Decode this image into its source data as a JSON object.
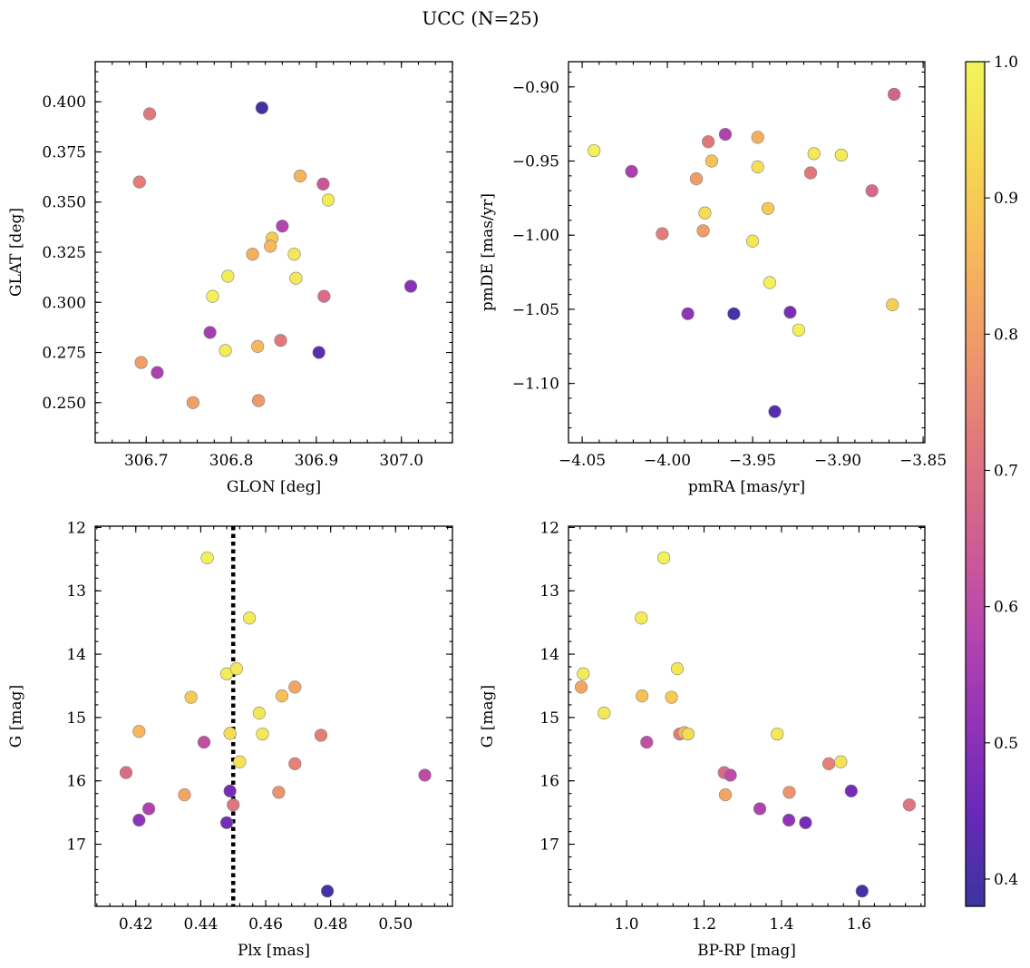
{
  "figure": {
    "title": "UCC (N=25)"
  },
  "colorbar": {
    "range": [
      0.38,
      1.0
    ],
    "ticks": [
      0.4,
      0.5,
      0.6,
      0.7,
      0.8,
      0.9,
      1.0
    ],
    "tick_labels": [
      "0.4",
      "0.5",
      "0.6",
      "0.7",
      "0.8",
      "0.9",
      "1.0"
    ],
    "colormap": "plasma",
    "stops": [
      "#3a35a0",
      "#6a28b8",
      "#9434b8",
      "#b947ad",
      "#d2608f",
      "#e27a7a",
      "#f09a6a",
      "#f7b95a",
      "#f6d951",
      "#f2f45a"
    ]
  },
  "chart_data": [
    {
      "type": "scatter",
      "xlabel": "GLON [deg]",
      "ylabel": "GLAT [deg]",
      "xlim": [
        306.64,
        307.06
      ],
      "ylim": [
        0.23,
        0.42
      ],
      "xticks": [
        306.7,
        306.8,
        306.9,
        307.0
      ],
      "xtick_labels": [
        "306.7",
        "306.8",
        "306.9",
        "307.0"
      ],
      "yticks": [
        0.25,
        0.275,
        0.3,
        0.325,
        0.35,
        0.375,
        0.4
      ],
      "ytick_labels": [
        "0.250",
        "0.275",
        "0.300",
        "0.325",
        "0.350",
        "0.375",
        "0.400"
      ],
      "y_inverted": false,
      "points": [
        {
          "x": 306.836,
          "y": 0.397,
          "c": 0.39
        },
        {
          "x": 306.704,
          "y": 0.394,
          "c": 0.72
        },
        {
          "x": 306.692,
          "y": 0.36,
          "c": 0.73
        },
        {
          "x": 306.881,
          "y": 0.363,
          "c": 0.85
        },
        {
          "x": 306.908,
          "y": 0.359,
          "c": 0.63
        },
        {
          "x": 306.914,
          "y": 0.351,
          "c": 0.98
        },
        {
          "x": 306.86,
          "y": 0.338,
          "c": 0.58
        },
        {
          "x": 306.848,
          "y": 0.332,
          "c": 0.9
        },
        {
          "x": 306.846,
          "y": 0.328,
          "c": 0.86
        },
        {
          "x": 306.825,
          "y": 0.324,
          "c": 0.84
        },
        {
          "x": 306.874,
          "y": 0.324,
          "c": 0.97
        },
        {
          "x": 306.796,
          "y": 0.313,
          "c": 0.98
        },
        {
          "x": 306.876,
          "y": 0.312,
          "c": 0.97
        },
        {
          "x": 306.778,
          "y": 0.303,
          "c": 0.99
        },
        {
          "x": 306.909,
          "y": 0.303,
          "c": 0.69
        },
        {
          "x": 307.011,
          "y": 0.308,
          "c": 0.5
        },
        {
          "x": 306.775,
          "y": 0.285,
          "c": 0.55
        },
        {
          "x": 306.858,
          "y": 0.281,
          "c": 0.72
        },
        {
          "x": 306.793,
          "y": 0.276,
          "c": 0.98
        },
        {
          "x": 306.831,
          "y": 0.278,
          "c": 0.86
        },
        {
          "x": 306.903,
          "y": 0.275,
          "c": 0.43
        },
        {
          "x": 306.694,
          "y": 0.27,
          "c": 0.8
        },
        {
          "x": 306.713,
          "y": 0.265,
          "c": 0.56
        },
        {
          "x": 306.755,
          "y": 0.25,
          "c": 0.8
        },
        {
          "x": 306.832,
          "y": 0.251,
          "c": 0.79
        }
      ]
    },
    {
      "type": "scatter",
      "xlabel": "pmRA [mas/yr]",
      "ylabel": "pmDE [mas/yr]",
      "xlim": [
        -4.058,
        -3.849
      ],
      "ylim": [
        -1.14,
        -0.883
      ],
      "xticks": [
        -4.05,
        -4.0,
        -3.95,
        -3.9,
        -3.85
      ],
      "xtick_labels": [
        "−4.05",
        "−4.00",
        "−3.95",
        "−3.90",
        "−3.85"
      ],
      "yticks": [
        -1.1,
        -1.05,
        -1.0,
        -0.95,
        -0.9
      ],
      "ytick_labels": [
        "−1.10",
        "−1.05",
        "−1.00",
        "−0.95",
        "−0.90"
      ],
      "y_inverted": false,
      "points": [
        {
          "x": -3.867,
          "y": -0.905,
          "c": 0.66
        },
        {
          "x": -4.043,
          "y": -0.943,
          "c": 0.99
        },
        {
          "x": -4.021,
          "y": -0.957,
          "c": 0.56
        },
        {
          "x": -3.966,
          "y": -0.932,
          "c": 0.57
        },
        {
          "x": -3.976,
          "y": -0.937,
          "c": 0.72
        },
        {
          "x": -3.947,
          "y": -0.934,
          "c": 0.84
        },
        {
          "x": -3.974,
          "y": -0.95,
          "c": 0.88
        },
        {
          "x": -3.983,
          "y": -0.962,
          "c": 0.8
        },
        {
          "x": -3.947,
          "y": -0.954,
          "c": 0.95
        },
        {
          "x": -3.914,
          "y": -0.945,
          "c": 0.97
        },
        {
          "x": -3.898,
          "y": -0.946,
          "c": 0.98
        },
        {
          "x": -3.916,
          "y": -0.958,
          "c": 0.72
        },
        {
          "x": -3.88,
          "y": -0.97,
          "c": 0.68
        },
        {
          "x": -3.978,
          "y": -0.985,
          "c": 0.94
        },
        {
          "x": -3.941,
          "y": -0.982,
          "c": 0.9
        },
        {
          "x": -4.003,
          "y": -0.999,
          "c": 0.73
        },
        {
          "x": -3.979,
          "y": -0.997,
          "c": 0.8
        },
        {
          "x": -3.95,
          "y": -1.004,
          "c": 0.97
        },
        {
          "x": -3.94,
          "y": -1.032,
          "c": 0.99
        },
        {
          "x": -3.868,
          "y": -1.047,
          "c": 0.91
        },
        {
          "x": -3.988,
          "y": -1.053,
          "c": 0.51
        },
        {
          "x": -3.961,
          "y": -1.053,
          "c": 0.4
        },
        {
          "x": -3.928,
          "y": -1.052,
          "c": 0.48
        },
        {
          "x": -3.923,
          "y": -1.064,
          "c": 0.99
        },
        {
          "x": -3.937,
          "y": -1.119,
          "c": 0.42
        }
      ]
    },
    {
      "type": "scatter",
      "xlabel": "Plx [mas]",
      "ylabel": "G [mag]",
      "xlim": [
        0.4075,
        0.5175
      ],
      "ylim": [
        17.98,
        11.98
      ],
      "xticks": [
        0.42,
        0.44,
        0.46,
        0.48,
        0.5
      ],
      "xtick_labels": [
        "0.42",
        "0.44",
        "0.46",
        "0.48",
        "0.50"
      ],
      "yticks": [
        12,
        13,
        14,
        15,
        16,
        17
      ],
      "ytick_labels": [
        "12",
        "13",
        "14",
        "15",
        "16",
        "17"
      ],
      "y_inverted": true,
      "reference_line": {
        "axis": "x",
        "value": 0.45,
        "style": "dotted"
      },
      "points": [
        {
          "x": 0.442,
          "y": 12.48,
          "c": 0.99
        },
        {
          "x": 0.455,
          "y": 13.43,
          "c": 0.98
        },
        {
          "x": 0.448,
          "y": 14.31,
          "c": 0.98
        },
        {
          "x": 0.451,
          "y": 14.23,
          "c": 0.97
        },
        {
          "x": 0.437,
          "y": 14.68,
          "c": 0.9
        },
        {
          "x": 0.465,
          "y": 14.66,
          "c": 0.88
        },
        {
          "x": 0.469,
          "y": 14.52,
          "c": 0.82
        },
        {
          "x": 0.458,
          "y": 14.93,
          "c": 0.97
        },
        {
          "x": 0.459,
          "y": 15.26,
          "c": 0.97
        },
        {
          "x": 0.449,
          "y": 15.25,
          "c": 0.94
        },
        {
          "x": 0.421,
          "y": 15.22,
          "c": 0.86
        },
        {
          "x": 0.441,
          "y": 15.39,
          "c": 0.61
        },
        {
          "x": 0.477,
          "y": 15.28,
          "c": 0.73
        },
        {
          "x": 0.452,
          "y": 15.7,
          "c": 0.96
        },
        {
          "x": 0.469,
          "y": 15.73,
          "c": 0.74
        },
        {
          "x": 0.417,
          "y": 15.87,
          "c": 0.69
        },
        {
          "x": 0.509,
          "y": 15.91,
          "c": 0.6
        },
        {
          "x": 0.449,
          "y": 16.16,
          "c": 0.47
        },
        {
          "x": 0.435,
          "y": 16.22,
          "c": 0.82
        },
        {
          "x": 0.464,
          "y": 16.18,
          "c": 0.78
        },
        {
          "x": 0.45,
          "y": 16.38,
          "c": 0.71
        },
        {
          "x": 0.424,
          "y": 16.44,
          "c": 0.57
        },
        {
          "x": 0.421,
          "y": 16.62,
          "c": 0.51
        },
        {
          "x": 0.448,
          "y": 16.66,
          "c": 0.47
        },
        {
          "x": 0.479,
          "y": 17.74,
          "c": 0.4
        }
      ]
    },
    {
      "type": "scatter",
      "xlabel": "BP-RP [mag]",
      "ylabel": "G [mag]",
      "xlim": [
        0.85,
        1.77
      ],
      "ylim": [
        17.98,
        11.98
      ],
      "xticks": [
        1.0,
        1.2,
        1.4,
        1.6
      ],
      "xtick_labels": [
        "1.0",
        "1.2",
        "1.4",
        "1.6"
      ],
      "yticks": [
        12,
        13,
        14,
        15,
        16,
        17
      ],
      "ytick_labels": [
        "12",
        "13",
        "14",
        "15",
        "16",
        "17"
      ],
      "y_inverted": true,
      "points": [
        {
          "x": 1.096,
          "y": 12.48,
          "c": 0.99
        },
        {
          "x": 1.038,
          "y": 13.43,
          "c": 0.98
        },
        {
          "x": 0.888,
          "y": 14.31,
          "c": 0.98
        },
        {
          "x": 1.131,
          "y": 14.23,
          "c": 0.97
        },
        {
          "x": 0.883,
          "y": 14.52,
          "c": 0.82
        },
        {
          "x": 1.04,
          "y": 14.66,
          "c": 0.88
        },
        {
          "x": 1.116,
          "y": 14.68,
          "c": 0.9
        },
        {
          "x": 0.942,
          "y": 14.93,
          "c": 0.97
        },
        {
          "x": 1.137,
          "y": 15.26,
          "c": 0.73
        },
        {
          "x": 1.149,
          "y": 15.24,
          "c": 0.86
        },
        {
          "x": 1.159,
          "y": 15.26,
          "c": 0.94
        },
        {
          "x": 1.389,
          "y": 15.26,
          "c": 0.97
        },
        {
          "x": 1.052,
          "y": 15.39,
          "c": 0.61
        },
        {
          "x": 1.522,
          "y": 15.73,
          "c": 0.74
        },
        {
          "x": 1.553,
          "y": 15.7,
          "c": 0.96
        },
        {
          "x": 1.252,
          "y": 15.87,
          "c": 0.69
        },
        {
          "x": 1.268,
          "y": 15.91,
          "c": 0.6
        },
        {
          "x": 1.58,
          "y": 16.16,
          "c": 0.47
        },
        {
          "x": 1.42,
          "y": 16.18,
          "c": 0.78
        },
        {
          "x": 1.255,
          "y": 16.22,
          "c": 0.82
        },
        {
          "x": 1.73,
          "y": 16.38,
          "c": 0.71
        },
        {
          "x": 1.344,
          "y": 16.44,
          "c": 0.57
        },
        {
          "x": 1.419,
          "y": 16.62,
          "c": 0.51
        },
        {
          "x": 1.462,
          "y": 16.66,
          "c": 0.47
        },
        {
          "x": 1.608,
          "y": 17.74,
          "c": 0.4
        }
      ]
    }
  ]
}
